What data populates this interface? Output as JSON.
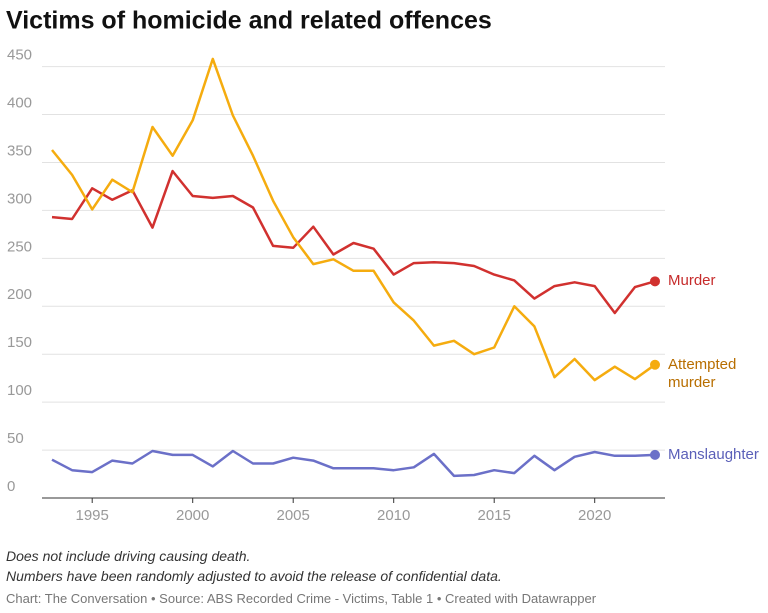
{
  "chart_data": {
    "type": "line",
    "title": "Victims of homicide and related offences",
    "x": [
      1993,
      1994,
      1995,
      1996,
      1997,
      1998,
      1999,
      2000,
      2001,
      2002,
      2003,
      2004,
      2005,
      2006,
      2007,
      2008,
      2009,
      2010,
      2011,
      2012,
      2013,
      2014,
      2015,
      2016,
      2017,
      2018,
      2019,
      2020,
      2021,
      2022,
      2023
    ],
    "series": [
      {
        "name": "Murder",
        "color": "#d1312f",
        "label_color": "#c62b2b",
        "values": [
          293,
          291,
          323,
          311,
          321,
          282,
          341,
          315,
          313,
          315,
          303,
          263,
          261,
          283,
          254,
          266,
          260,
          233,
          245,
          246,
          245,
          242,
          233,
          227,
          208,
          221,
          225,
          221,
          193,
          220,
          226
        ]
      },
      {
        "name": "Attempted murder",
        "color": "#f5ac0f",
        "label_color": "#b86e00",
        "values": [
          363,
          337,
          301,
          332,
          319,
          387,
          357,
          394,
          458,
          399,
          357,
          310,
          272,
          244,
          249,
          237,
          237,
          204,
          185,
          159,
          164,
          150,
          157,
          200,
          179,
          126,
          145,
          123,
          137,
          124,
          139
        ]
      },
      {
        "name": "Manslaughter",
        "color": "#6b70c8",
        "label_color": "#5a5fb8",
        "values": [
          40,
          29,
          27,
          39,
          36,
          49,
          45,
          45,
          33,
          49,
          36,
          36,
          42,
          39,
          31,
          31,
          31,
          29,
          32,
          46,
          23,
          24,
          29,
          26,
          44,
          29,
          43,
          48,
          44,
          44,
          45
        ]
      }
    ],
    "xlim": [
      1993,
      2023
    ],
    "xticks": [
      1995,
      2000,
      2005,
      2010,
      2015,
      2020
    ],
    "ylim": [
      0,
      460
    ],
    "yticks": [
      0,
      50,
      100,
      150,
      200,
      250,
      300,
      350,
      400,
      450
    ],
    "grid": true,
    "notes": [
      "Does not include driving causing death.",
      "Numbers have been randomly adjusted to avoid the release of confidential data."
    ],
    "source": "Chart: The Conversation • Source: ABS Recorded Crime - Victims, Table 1 • Created with Datawrapper"
  }
}
